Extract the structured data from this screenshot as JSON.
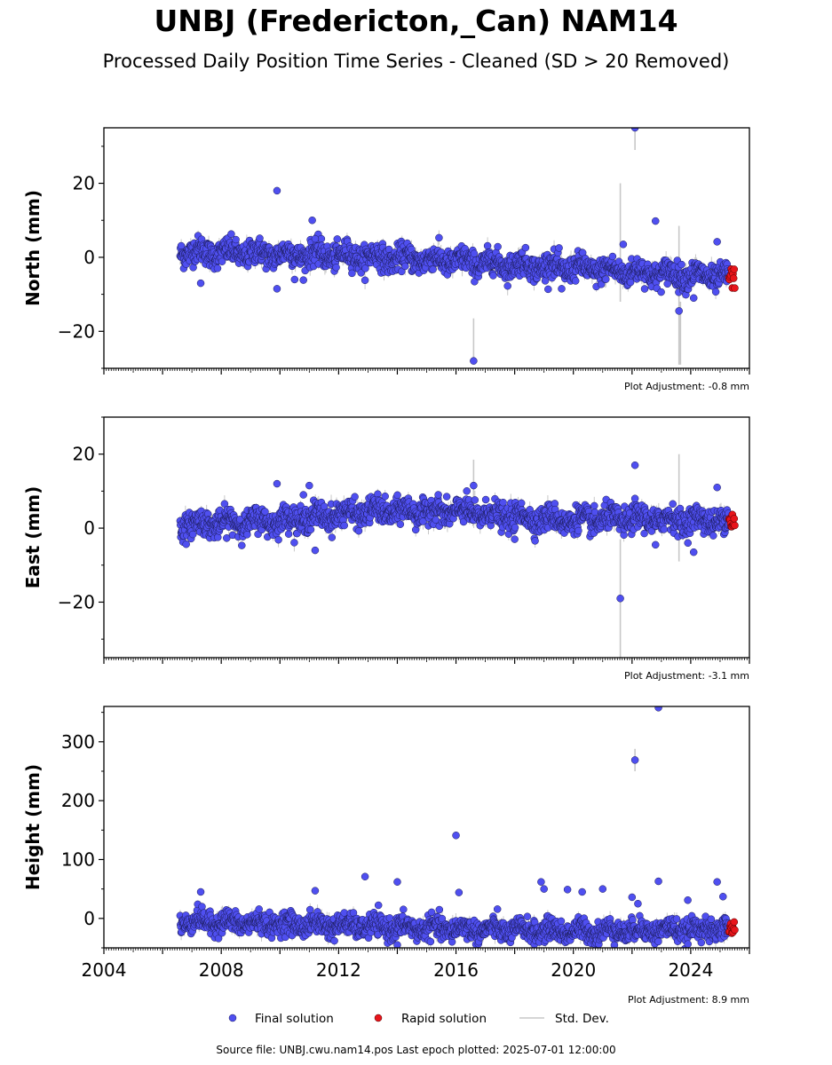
{
  "title": "UNBJ (Fredericton,_Can) NAM14",
  "subtitle": "Processed Daily Position Time Series - Cleaned (SD > 20 Removed)",
  "footer": "Source file: UNBJ.cwu.nam14.pos  Last epoch plotted: 2025-07-01 12:00:00",
  "colors": {
    "final": "#4f4ff0",
    "rapid": "#e8151b",
    "stddev": "#c8c8c8",
    "edge": "#1a1a55"
  },
  "legend": {
    "placement": "bottom-center",
    "items": [
      "Final solution",
      "Rapid solution",
      "Std. Dev."
    ]
  },
  "chart_data": [
    {
      "type": "scatter",
      "ylabel": "North (mm)",
      "adjustment": "Plot Adjustment: -0.8 mm",
      "xlim": [
        2004,
        2026
      ],
      "ylim": [
        -30,
        35
      ],
      "yticks": [
        -20,
        0,
        20
      ],
      "yticklabels": [
        "−20",
        "0",
        "20"
      ],
      "xtick_labels_shown": false,
      "trend": {
        "x": [
          2006.6,
          2012,
          2016,
          2020,
          2025.4
        ],
        "y": [
          1.5,
          0.5,
          -1.0,
          -3.0,
          -5.5
        ]
      },
      "noise": 1.7,
      "final_range": [
        2006.6,
        2025.3
      ],
      "rapid_range": [
        2025.3,
        2025.5
      ],
      "outliers": [
        {
          "x": 2009.9,
          "y": 18
        },
        {
          "x": 2011.1,
          "y": 10
        },
        {
          "x": 2007.3,
          "y": -7
        },
        {
          "x": 2009.9,
          "y": -8.5
        },
        {
          "x": 2016.6,
          "y": -28
        },
        {
          "x": 2021.7,
          "y": 3.5
        },
        {
          "x": 2022.1,
          "y": 35
        },
        {
          "x": 2022.8,
          "y": 9.8
        },
        {
          "x": 2023.6,
          "y": -14.5
        },
        {
          "x": 2024.1,
          "y": -11
        },
        {
          "x": 2024.9,
          "y": 4.2
        },
        {
          "x": 2019.6,
          "y": -8.5
        },
        {
          "x": 2011.2,
          "y": 5
        },
        {
          "x": 2010.5,
          "y": -6
        }
      ],
      "stddev_spikes": [
        {
          "x": 2016.6,
          "y1": -28,
          "y2": -16.5
        },
        {
          "x": 2021.6,
          "y1": -12,
          "y2": 20
        },
        {
          "x": 2023.6,
          "y1": -29,
          "y2": 8.5
        },
        {
          "x": 2023.65,
          "y1": -29,
          "y2": -12
        },
        {
          "x": 2022.1,
          "y1": 29,
          "y2": 35
        }
      ]
    },
    {
      "type": "scatter",
      "ylabel": "East (mm)",
      "adjustment": "Plot Adjustment: -3.1 mm",
      "xlim": [
        2004,
        2026
      ],
      "ylim": [
        -35,
        30
      ],
      "yticks": [
        -20,
        0,
        20
      ],
      "yticklabels": [
        "−20",
        "0",
        "20"
      ],
      "xtick_labels_shown": false,
      "trend": {
        "x": [
          2006.6,
          2010,
          2013,
          2016,
          2018,
          2020,
          2022,
          2025.4
        ],
        "y": [
          1.0,
          2.0,
          4.5,
          4.5,
          3.0,
          2.0,
          2.5,
          2.0
        ]
      },
      "noise": 1.7,
      "final_range": [
        2006.6,
        2025.3
      ],
      "rapid_range": [
        2025.3,
        2025.5
      ],
      "outliers": [
        {
          "x": 2009.9,
          "y": 12
        },
        {
          "x": 2011.0,
          "y": 11.5
        },
        {
          "x": 2010.8,
          "y": 9
        },
        {
          "x": 2011.2,
          "y": -6
        },
        {
          "x": 2016.6,
          "y": 11.5
        },
        {
          "x": 2021.6,
          "y": -19
        },
        {
          "x": 2022.1,
          "y": 17
        },
        {
          "x": 2022.1,
          "y": 8
        },
        {
          "x": 2024.1,
          "y": -6.5
        },
        {
          "x": 2024.9,
          "y": 11
        },
        {
          "x": 2018.0,
          "y": -3
        },
        {
          "x": 2022.8,
          "y": -4.5
        }
      ],
      "stddev_spikes": [
        {
          "x": 2016.6,
          "y1": 5,
          "y2": 18.5
        },
        {
          "x": 2021.6,
          "y1": -35,
          "y2": -3
        },
        {
          "x": 2023.6,
          "y1": -9,
          "y2": 20
        }
      ]
    },
    {
      "type": "scatter",
      "ylabel": "Height (mm)",
      "adjustment": "Plot Adjustment: 8.9 mm",
      "xlim": [
        2004,
        2026
      ],
      "ylim": [
        -50,
        360
      ],
      "yticks": [
        0,
        100,
        200,
        300
      ],
      "yticklabels": [
        "0",
        "100",
        "200",
        "300"
      ],
      "xticks": [
        2004,
        2008,
        2012,
        2016,
        2020,
        2024
      ],
      "xtick_labels_shown": true,
      "trend": {
        "x": [
          2006.6,
          2012,
          2016,
          2020,
          2025.4
        ],
        "y": [
          -5,
          -12,
          -18,
          -22,
          -18
        ]
      },
      "noise": 9,
      "final_range": [
        2006.6,
        2025.3
      ],
      "rapid_range": [
        2025.3,
        2025.5
      ],
      "outliers": [
        {
          "x": 2007.3,
          "y": 45
        },
        {
          "x": 2011.2,
          "y": 47
        },
        {
          "x": 2012.9,
          "y": 71
        },
        {
          "x": 2014.0,
          "y": 62
        },
        {
          "x": 2016.0,
          "y": 141
        },
        {
          "x": 2016.1,
          "y": 44
        },
        {
          "x": 2018.9,
          "y": 62
        },
        {
          "x": 2019.0,
          "y": 50
        },
        {
          "x": 2019.8,
          "y": 49
        },
        {
          "x": 2020.3,
          "y": 45
        },
        {
          "x": 2021.0,
          "y": 50
        },
        {
          "x": 2022.0,
          "y": 36
        },
        {
          "x": 2022.1,
          "y": 269
        },
        {
          "x": 2022.9,
          "y": 358
        },
        {
          "x": 2022.9,
          "y": 63
        },
        {
          "x": 2023.9,
          "y": 31
        },
        {
          "x": 2024.9,
          "y": 62
        },
        {
          "x": 2025.1,
          "y": 37
        },
        {
          "x": 2014.0,
          "y": -45
        },
        {
          "x": 2022.2,
          "y": 25
        }
      ],
      "stddev_spikes": [
        {
          "x": 2022.1,
          "y1": 250,
          "y2": 288
        }
      ]
    }
  ]
}
